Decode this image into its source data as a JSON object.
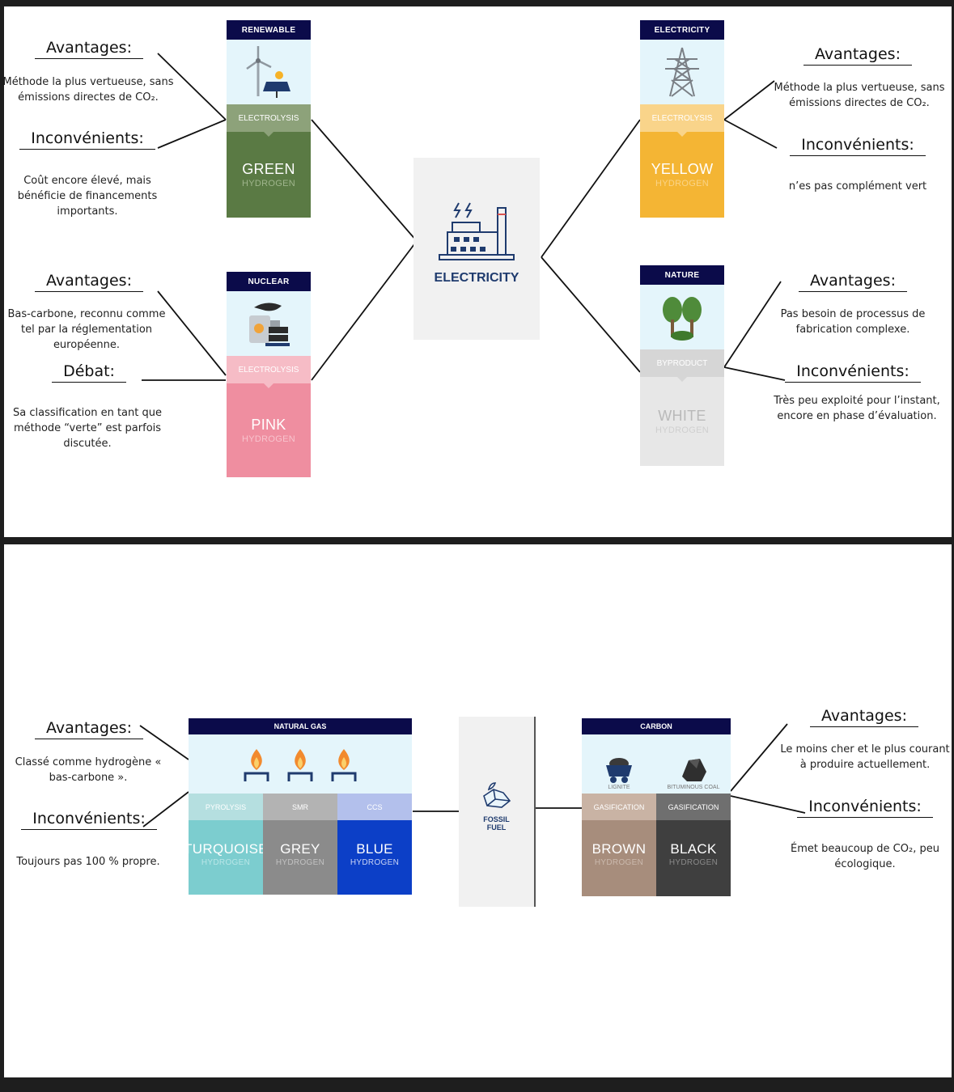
{
  "colors": {
    "navy": "#0b0b4a",
    "green": "#5a7a44",
    "green_proc": "#8da27a",
    "yellow": "#f4b534",
    "yellow_proc": "#f9d48a",
    "pink": "#ef8ea0",
    "pink_proc": "#f6bcc6",
    "white_h": "#e7e7e7",
    "white_proc": "#d6d6d6",
    "turquoise": "#7ccdcf",
    "grey": "#8b8b8b",
    "blue": "#0c3fc7",
    "brown": "#a78d7c",
    "black": "#3f3f3f",
    "title_blue": "#1f3b6e"
  },
  "top": {
    "center": {
      "label": "ELECTRICITY",
      "icon": "factory-icon"
    },
    "green": {
      "source": "RENEWABLE",
      "icon": "wind-solar-icon",
      "process": "ELECTROLYSIS",
      "name": "GREEN",
      "sub": "HYDROGEN",
      "adv_title": "Avantages:",
      "adv_text": "Méthode la plus vertueuse, sans émissions directes de CO₂.",
      "inc_title": "Inconvénients:",
      "inc_text": "Coût encore élevé, mais bénéficie de financements importants."
    },
    "pink": {
      "source": "NUCLEAR",
      "icon": "nuclear-plant-icon",
      "process": "ELECTROLYSIS",
      "name": "PINK",
      "sub": "HYDROGEN",
      "adv_title": "Avantages:",
      "adv_text": "Bas-carbone, reconnu comme tel par la réglementation européenne.",
      "inc_title": "Débat:",
      "inc_text": "Sa classification en tant que méthode “verte” est parfois discutée."
    },
    "yellow": {
      "source": "ELECTRICITY",
      "icon": "power-pylon-icon",
      "process": "ELECTROLYSIS",
      "name": "YELLOW",
      "sub": "HYDROGEN",
      "adv_title": "Avantages:",
      "adv_text": "Méthode la plus vertueuse, sans émissions directes de CO₂.",
      "inc_title": "Inconvénients:",
      "inc_text": "n’es pas complément vert"
    },
    "white": {
      "source": "NATURE",
      "icon": "trees-icon",
      "process": "BYPRODUCT",
      "name": "WHITE",
      "sub": "HYDROGEN",
      "adv_title": "Avantages:",
      "adv_text": "Pas besoin de processus de fabrication complexe.",
      "inc_title": "Inconvénients:",
      "inc_text": "Très peu exploité pour l’instant, encore en phase d’évaluation."
    }
  },
  "bottom": {
    "center": {
      "label": "FOSSIL FUEL",
      "icon": "coal-ice-icon"
    },
    "gas": {
      "source": "NATURAL GAS",
      "icon": "gas-flame-icon",
      "columns": [
        {
          "process": "PYROLYSIS",
          "name": "TURQUOISE",
          "sub": "HYDROGEN"
        },
        {
          "process": "SMR",
          "name": "GREY",
          "sub": "HYDROGEN"
        },
        {
          "process": "CCS",
          "name": "BLUE",
          "sub": "HYDROGEN"
        }
      ],
      "adv_title": "Avantages:",
      "adv_text": "Classé comme hydrogène « bas-carbone ».",
      "inc_title": "Inconvénients:",
      "inc_text": "Toujours pas 100 % propre."
    },
    "carbon": {
      "source": "CARBON",
      "icon_labels": [
        "LIGNITE",
        "BITUMINOUS COAL"
      ],
      "columns": [
        {
          "process": "GASIFICATION",
          "name": "BROWN",
          "sub": "HYDROGEN"
        },
        {
          "process": "GASIFICATION",
          "name": "BLACK",
          "sub": "HYDROGEN"
        }
      ],
      "adv_title": "Avantages:",
      "adv_text": "Le moins cher et le plus courant à produire actuellement.",
      "inc_title": "Inconvénients:",
      "inc_text": "Émet beaucoup de CO₂, peu écologique."
    }
  }
}
